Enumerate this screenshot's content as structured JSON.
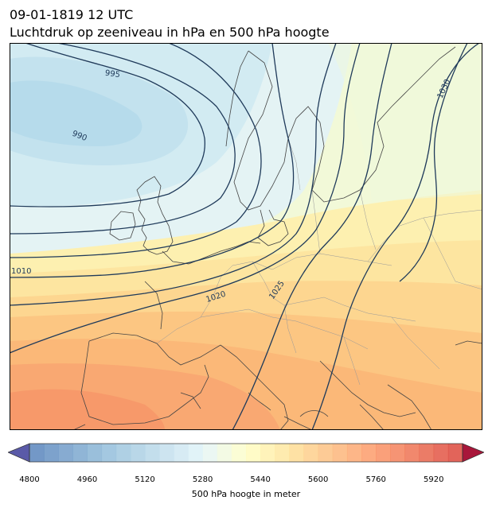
{
  "title": {
    "datetime": "09-01-1819 12 UTC",
    "subtitle": "Luchtdruk op zeeniveau in hPa en 500 hPa hoogte"
  },
  "isobar_labels": [
    "995",
    "990",
    "1010",
    "1020",
    "1025",
    "1030"
  ],
  "colorbar": {
    "label": "500 hPa hoogte in meter",
    "min": 4800,
    "max": 6000,
    "step": 40,
    "tick_values": [
      4800,
      4960,
      5120,
      5280,
      5440,
      5600,
      5760,
      5920
    ],
    "tick_labels": [
      "4800",
      "4960",
      "5120",
      "5280",
      "5440",
      "5600",
      "5760",
      "5920"
    ],
    "colormap": "RdYlBu_r",
    "extend": "both"
  },
  "colors": {
    "isobar": "#1f3a5a",
    "coastline": "#444444",
    "border": "#999999"
  }
}
